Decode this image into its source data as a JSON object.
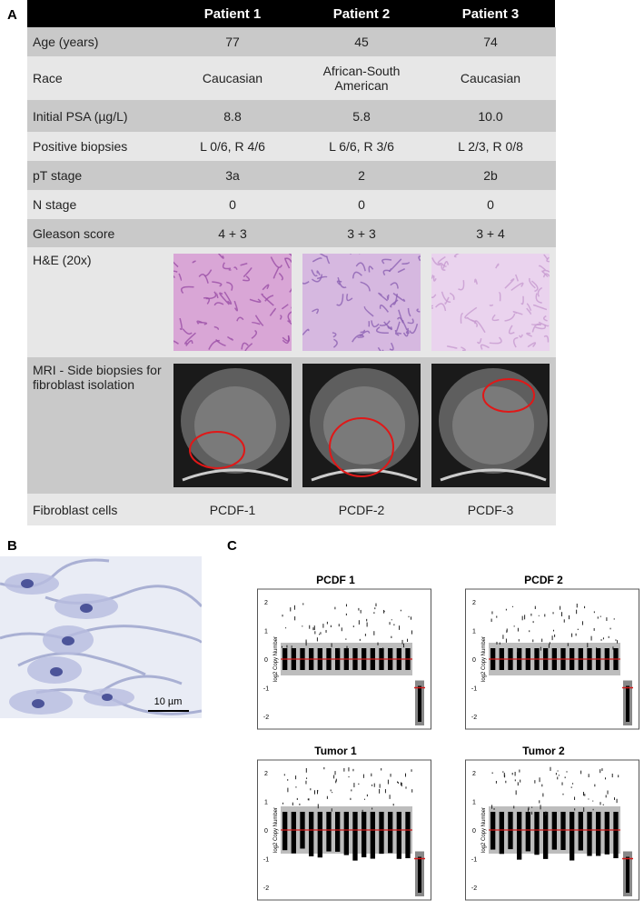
{
  "panel_labels": [
    "A",
    "B",
    "C"
  ],
  "table": {
    "header": [
      "Patient 1",
      "Patient 2",
      "Patient 3"
    ],
    "rows": [
      {
        "label": "Age (years)",
        "cells": [
          "77",
          "45",
          "74"
        ]
      },
      {
        "label": "Race",
        "cells": [
          "Caucasian",
          "African-South American",
          "Caucasian"
        ]
      },
      {
        "label": "Initial PSA (µg/L)",
        "cells": [
          "8.8",
          "5.8",
          "10.0"
        ]
      },
      {
        "label": "Positive biopsies",
        "cells": [
          "L 0/6, R 4/6",
          "L 6/6, R 3/6",
          "L 2/3, R 0/8"
        ]
      },
      {
        "label": "pT stage",
        "cells": [
          "3a",
          "2",
          "2b"
        ]
      },
      {
        "label": "N stage",
        "cells": [
          "0",
          "0",
          "0"
        ]
      },
      {
        "label": "Gleason score",
        "cells": [
          "4 + 3",
          "3 + 3",
          "3 + 4"
        ]
      },
      {
        "label": "H&E (20x)"
      },
      {
        "label": "MRI - Side biopsies for fibroblast isolation"
      },
      {
        "label": "Fibroblast cells",
        "cells": [
          "PCDF-1",
          "PCDF-2",
          "PCDF-3"
        ]
      }
    ]
  },
  "micrograph": {
    "scale_bar": "10 µm"
  },
  "copy_number_plots": [
    {
      "title": "PCDF 1",
      "y_axis_label": "log2 Copy Number",
      "yticks": [
        "2",
        "1",
        "0",
        "-1",
        "-2"
      ]
    },
    {
      "title": "PCDF 2",
      "y_axis_label": "log2 Copy Number",
      "yticks": [
        "2",
        "1",
        "0",
        "-1",
        "-2"
      ]
    },
    {
      "title": "Tumor 1",
      "y_axis_label": "log2 Copy Number",
      "yticks": [
        "2",
        "1",
        "0",
        "-1",
        "-2"
      ]
    },
    {
      "title": "Tumor 2",
      "y_axis_label": "log2 Copy Number",
      "yticks": [
        "2",
        "1",
        "0",
        "-1",
        "-2"
      ]
    }
  ]
}
